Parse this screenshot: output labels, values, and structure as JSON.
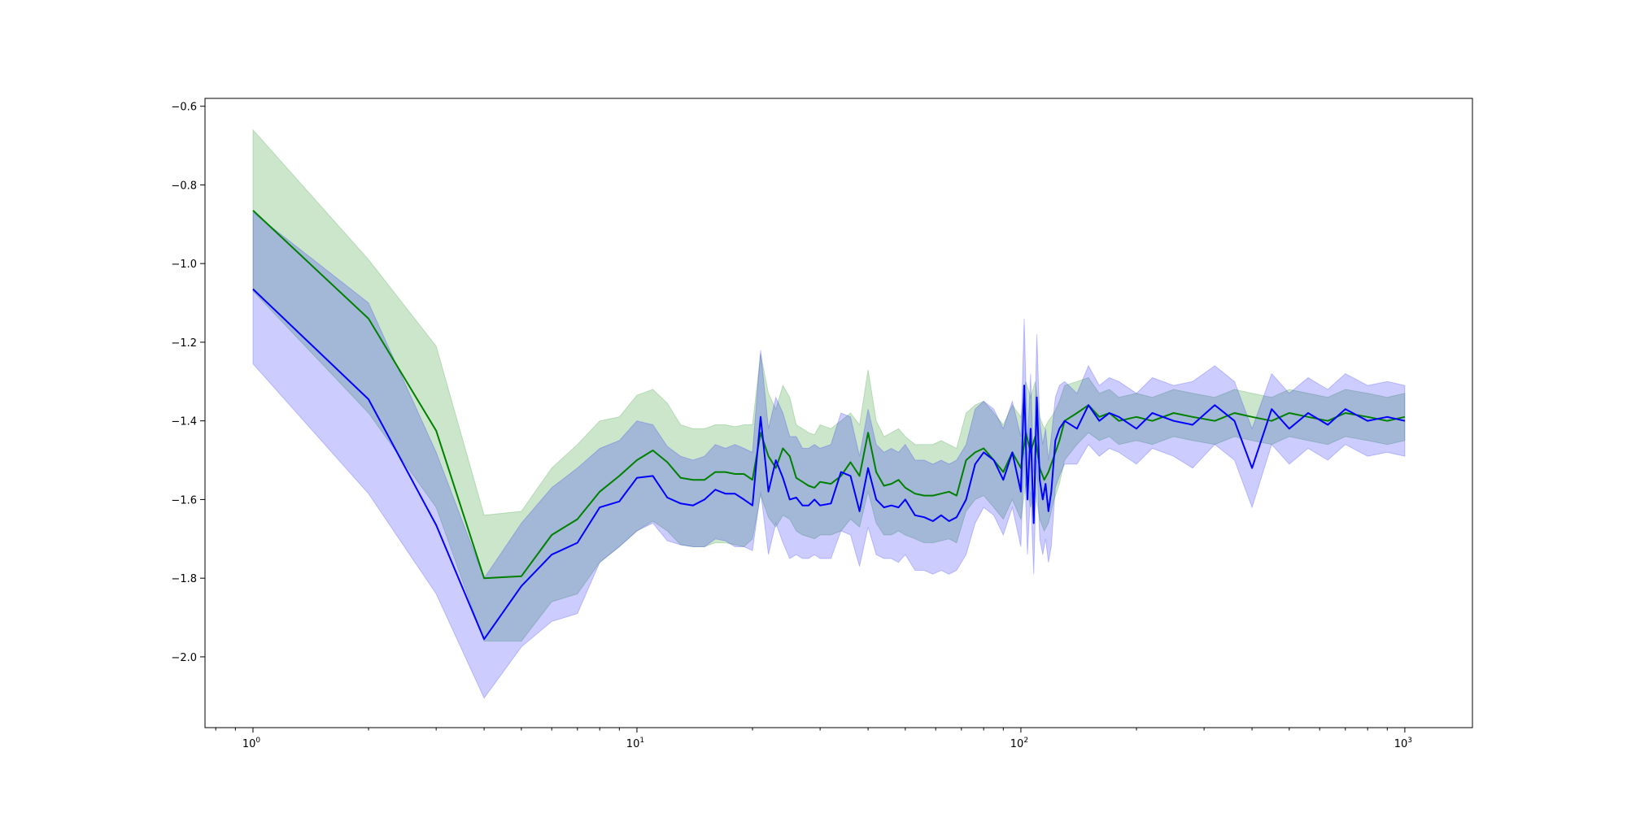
{
  "chart_data": {
    "type": "line",
    "x_scale": "log",
    "xlim": [
      0.75,
      1500
    ],
    "ylim": [
      -2.18,
      -0.58
    ],
    "grid": false,
    "x_ticks": [
      {
        "value": 1,
        "base": "10",
        "exp": "0"
      },
      {
        "value": 10,
        "base": "10",
        "exp": "1"
      },
      {
        "value": 100,
        "base": "10",
        "exp": "2"
      },
      {
        "value": 1000,
        "base": "10",
        "exp": "3"
      }
    ],
    "y_ticks": [
      {
        "value": -0.6,
        "label": "−0.6"
      },
      {
        "value": -0.8,
        "label": "−0.8"
      },
      {
        "value": -1.0,
        "label": "−1.0"
      },
      {
        "value": -1.2,
        "label": "−1.2"
      },
      {
        "value": -1.4,
        "label": "−1.4"
      },
      {
        "value": -1.6,
        "label": "−1.6"
      },
      {
        "value": -1.8,
        "label": "−1.8"
      },
      {
        "value": -2.0,
        "label": "−2.0"
      }
    ],
    "series": [
      {
        "color": "#008000",
        "band_color": "#008000",
        "band_opacity": 0.2,
        "x": [
          1,
          2,
          3,
          4,
          5,
          6,
          7,
          8,
          9,
          10,
          11,
          12,
          13,
          14,
          15,
          16,
          17,
          18,
          19,
          20,
          21,
          22,
          23,
          24,
          25,
          26,
          27,
          28,
          29,
          30,
          32,
          34,
          36,
          38,
          40,
          42,
          44,
          46,
          48,
          50,
          53,
          56,
          59,
          62,
          65,
          68,
          72,
          76,
          80,
          85,
          90,
          95,
          100,
          103,
          106,
          109,
          112,
          115,
          118,
          122,
          126,
          130,
          140,
          150,
          160,
          170,
          180,
          200,
          220,
          250,
          280,
          320,
          360,
          400,
          450,
          500,
          560,
          630,
          700,
          800,
          900,
          1000
        ],
        "mean": [
          -0.865,
          -1.14,
          -1.425,
          -1.8,
          -1.795,
          -1.69,
          -1.65,
          -1.58,
          -1.54,
          -1.5,
          -1.475,
          -1.505,
          -1.545,
          -1.55,
          -1.55,
          -1.53,
          -1.53,
          -1.535,
          -1.535,
          -1.55,
          -1.43,
          -1.49,
          -1.52,
          -1.47,
          -1.49,
          -1.545,
          -1.555,
          -1.565,
          -1.57,
          -1.555,
          -1.56,
          -1.54,
          -1.505,
          -1.54,
          -1.43,
          -1.53,
          -1.565,
          -1.56,
          -1.55,
          -1.57,
          -1.585,
          -1.59,
          -1.59,
          -1.585,
          -1.58,
          -1.59,
          -1.5,
          -1.48,
          -1.47,
          -1.5,
          -1.53,
          -1.48,
          -1.52,
          -1.43,
          -1.48,
          -1.44,
          -1.52,
          -1.55,
          -1.53,
          -1.49,
          -1.45,
          -1.4,
          -1.38,
          -1.36,
          -1.39,
          -1.38,
          -1.4,
          -1.39,
          -1.4,
          -1.38,
          -1.39,
          -1.4,
          -1.38,
          -1.39,
          -1.4,
          -1.38,
          -1.39,
          -1.4,
          -1.38,
          -1.39,
          -1.4,
          -1.39
        ],
        "lower": [
          -1.07,
          -1.38,
          -1.62,
          -1.96,
          -1.96,
          -1.86,
          -1.84,
          -1.76,
          -1.72,
          -1.68,
          -1.655,
          -1.68,
          -1.715,
          -1.72,
          -1.72,
          -1.71,
          -1.71,
          -1.715,
          -1.72,
          -1.7,
          -1.59,
          -1.645,
          -1.67,
          -1.64,
          -1.65,
          -1.68,
          -1.69,
          -1.695,
          -1.7,
          -1.69,
          -1.69,
          -1.68,
          -1.65,
          -1.67,
          -1.58,
          -1.66,
          -1.69,
          -1.69,
          -1.68,
          -1.69,
          -1.7,
          -1.71,
          -1.71,
          -1.705,
          -1.7,
          -1.71,
          -1.63,
          -1.6,
          -1.59,
          -1.62,
          -1.65,
          -1.6,
          -1.65,
          -1.56,
          -1.62,
          -1.58,
          -1.65,
          -1.68,
          -1.66,
          -1.6,
          -1.56,
          -1.5,
          -1.46,
          -1.43,
          -1.45,
          -1.44,
          -1.46,
          -1.45,
          -1.46,
          -1.44,
          -1.45,
          -1.46,
          -1.44,
          -1.45,
          -1.46,
          -1.44,
          -1.45,
          -1.46,
          -1.44,
          -1.45,
          -1.46,
          -1.45
        ],
        "upper": [
          -0.66,
          -0.99,
          -1.21,
          -1.64,
          -1.63,
          -1.52,
          -1.46,
          -1.4,
          -1.39,
          -1.335,
          -1.32,
          -1.355,
          -1.41,
          -1.42,
          -1.42,
          -1.41,
          -1.41,
          -1.415,
          -1.41,
          -1.41,
          -1.23,
          -1.33,
          -1.37,
          -1.31,
          -1.34,
          -1.41,
          -1.42,
          -1.43,
          -1.435,
          -1.41,
          -1.42,
          -1.4,
          -1.38,
          -1.41,
          -1.27,
          -1.4,
          -1.44,
          -1.43,
          -1.42,
          -1.44,
          -1.46,
          -1.46,
          -1.46,
          -1.45,
          -1.46,
          -1.47,
          -1.38,
          -1.36,
          -1.35,
          -1.38,
          -1.41,
          -1.36,
          -1.39,
          -1.3,
          -1.34,
          -1.3,
          -1.39,
          -1.42,
          -1.4,
          -1.38,
          -1.35,
          -1.31,
          -1.3,
          -1.29,
          -1.33,
          -1.32,
          -1.34,
          -1.33,
          -1.34,
          -1.32,
          -1.33,
          -1.34,
          -1.32,
          -1.33,
          -1.34,
          -1.32,
          -1.33,
          -1.34,
          -1.32,
          -1.33,
          -1.34,
          -1.33
        ]
      },
      {
        "color": "#0000ff",
        "band_color": "#0000ff",
        "band_opacity": 0.2,
        "x": [
          1,
          2,
          3,
          4,
          5,
          6,
          7,
          8,
          9,
          10,
          11,
          12,
          13,
          14,
          15,
          16,
          17,
          18,
          19,
          20,
          21,
          22,
          23,
          24,
          25,
          26,
          27,
          28,
          29,
          30,
          32,
          34,
          36,
          38,
          40,
          42,
          44,
          46,
          48,
          50,
          53,
          56,
          59,
          62,
          65,
          68,
          72,
          76,
          80,
          85,
          90,
          95,
          100,
          102,
          104,
          106,
          108,
          110,
          112,
          114,
          116,
          118,
          120,
          123,
          126,
          130,
          140,
          150,
          160,
          170,
          180,
          200,
          220,
          250,
          280,
          320,
          360,
          400,
          450,
          500,
          560,
          630,
          700,
          800,
          900,
          1000
        ],
        "mean": [
          -1.065,
          -1.345,
          -1.665,
          -1.955,
          -1.82,
          -1.74,
          -1.71,
          -1.62,
          -1.605,
          -1.545,
          -1.54,
          -1.595,
          -1.61,
          -1.615,
          -1.6,
          -1.575,
          -1.585,
          -1.585,
          -1.6,
          -1.615,
          -1.39,
          -1.58,
          -1.5,
          -1.545,
          -1.6,
          -1.595,
          -1.615,
          -1.615,
          -1.6,
          -1.615,
          -1.61,
          -1.53,
          -1.54,
          -1.63,
          -1.52,
          -1.6,
          -1.62,
          -1.615,
          -1.62,
          -1.6,
          -1.64,
          -1.645,
          -1.655,
          -1.64,
          -1.655,
          -1.645,
          -1.6,
          -1.51,
          -1.48,
          -1.5,
          -1.55,
          -1.48,
          -1.58,
          -1.31,
          -1.6,
          -1.42,
          -1.66,
          -1.34,
          -1.55,
          -1.6,
          -1.56,
          -1.63,
          -1.58,
          -1.45,
          -1.42,
          -1.4,
          -1.42,
          -1.36,
          -1.4,
          -1.38,
          -1.39,
          -1.42,
          -1.38,
          -1.4,
          -1.41,
          -1.36,
          -1.4,
          -1.52,
          -1.37,
          -1.42,
          -1.38,
          -1.41,
          -1.37,
          -1.4,
          -1.39,
          -1.4
        ],
        "lower": [
          -1.255,
          -1.585,
          -1.84,
          -2.105,
          -1.975,
          -1.91,
          -1.89,
          -1.76,
          -1.72,
          -1.68,
          -1.66,
          -1.705,
          -1.715,
          -1.72,
          -1.72,
          -1.7,
          -1.705,
          -1.72,
          -1.72,
          -1.73,
          -1.58,
          -1.74,
          -1.66,
          -1.71,
          -1.75,
          -1.74,
          -1.75,
          -1.75,
          -1.74,
          -1.75,
          -1.75,
          -1.68,
          -1.69,
          -1.77,
          -1.67,
          -1.74,
          -1.75,
          -1.75,
          -1.76,
          -1.74,
          -1.78,
          -1.78,
          -1.79,
          -1.78,
          -1.79,
          -1.78,
          -1.74,
          -1.66,
          -1.62,
          -1.64,
          -1.69,
          -1.62,
          -1.72,
          -1.48,
          -1.74,
          -1.58,
          -1.79,
          -1.5,
          -1.7,
          -1.74,
          -1.7,
          -1.76,
          -1.72,
          -1.57,
          -1.54,
          -1.51,
          -1.51,
          -1.46,
          -1.49,
          -1.47,
          -1.48,
          -1.51,
          -1.47,
          -1.49,
          -1.52,
          -1.46,
          -1.5,
          -1.62,
          -1.46,
          -1.51,
          -1.47,
          -1.5,
          -1.46,
          -1.49,
          -1.48,
          -1.49
        ],
        "upper": [
          -0.87,
          -1.1,
          -1.48,
          -1.8,
          -1.66,
          -1.57,
          -1.52,
          -1.47,
          -1.45,
          -1.4,
          -1.41,
          -1.465,
          -1.49,
          -1.5,
          -1.49,
          -1.46,
          -1.47,
          -1.46,
          -1.47,
          -1.48,
          -1.22,
          -1.42,
          -1.34,
          -1.38,
          -1.44,
          -1.44,
          -1.47,
          -1.47,
          -1.46,
          -1.47,
          -1.46,
          -1.38,
          -1.39,
          -1.49,
          -1.37,
          -1.46,
          -1.48,
          -1.47,
          -1.48,
          -1.46,
          -1.5,
          -1.5,
          -1.51,
          -1.5,
          -1.51,
          -1.5,
          -1.46,
          -1.37,
          -1.35,
          -1.37,
          -1.42,
          -1.35,
          -1.44,
          -1.14,
          -1.46,
          -1.28,
          -1.53,
          -1.18,
          -1.4,
          -1.46,
          -1.42,
          -1.5,
          -1.44,
          -1.34,
          -1.31,
          -1.3,
          -1.33,
          -1.26,
          -1.31,
          -1.29,
          -1.3,
          -1.33,
          -1.29,
          -1.31,
          -1.3,
          -1.26,
          -1.3,
          -1.42,
          -1.28,
          -1.33,
          -1.29,
          -1.32,
          -1.28,
          -1.31,
          -1.3,
          -1.31
        ]
      }
    ]
  }
}
